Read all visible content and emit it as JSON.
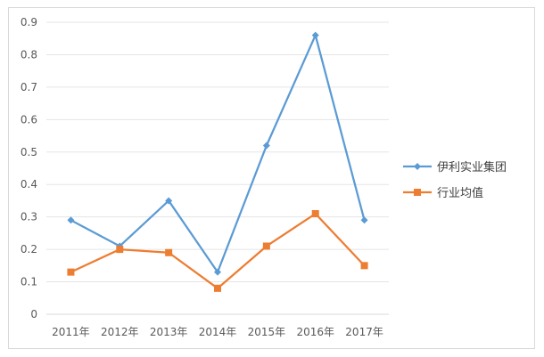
{
  "chart_data": {
    "type": "line",
    "categories": [
      "2011年",
      "2012年",
      "2013年",
      "2014年",
      "2015年",
      "2016年",
      "2017年"
    ],
    "ylim": [
      0,
      0.9
    ],
    "yticks": [
      "0",
      "0.1",
      "0.2",
      "0.3",
      "0.4",
      "0.5",
      "0.6",
      "0.7",
      "0.8",
      "0.9"
    ],
    "grid": true,
    "legend_position": "right",
    "series": [
      {
        "name": "伊利实业集团",
        "values": [
          0.29,
          0.21,
          0.35,
          0.13,
          0.52,
          0.86,
          0.29
        ],
        "color": "#5b9bd5",
        "marker": "diamond"
      },
      {
        "name": "行业均值",
        "values": [
          0.13,
          0.2,
          0.19,
          0.08,
          0.21,
          0.31,
          0.15
        ],
        "color": "#ed7d31",
        "marker": "square"
      }
    ]
  }
}
